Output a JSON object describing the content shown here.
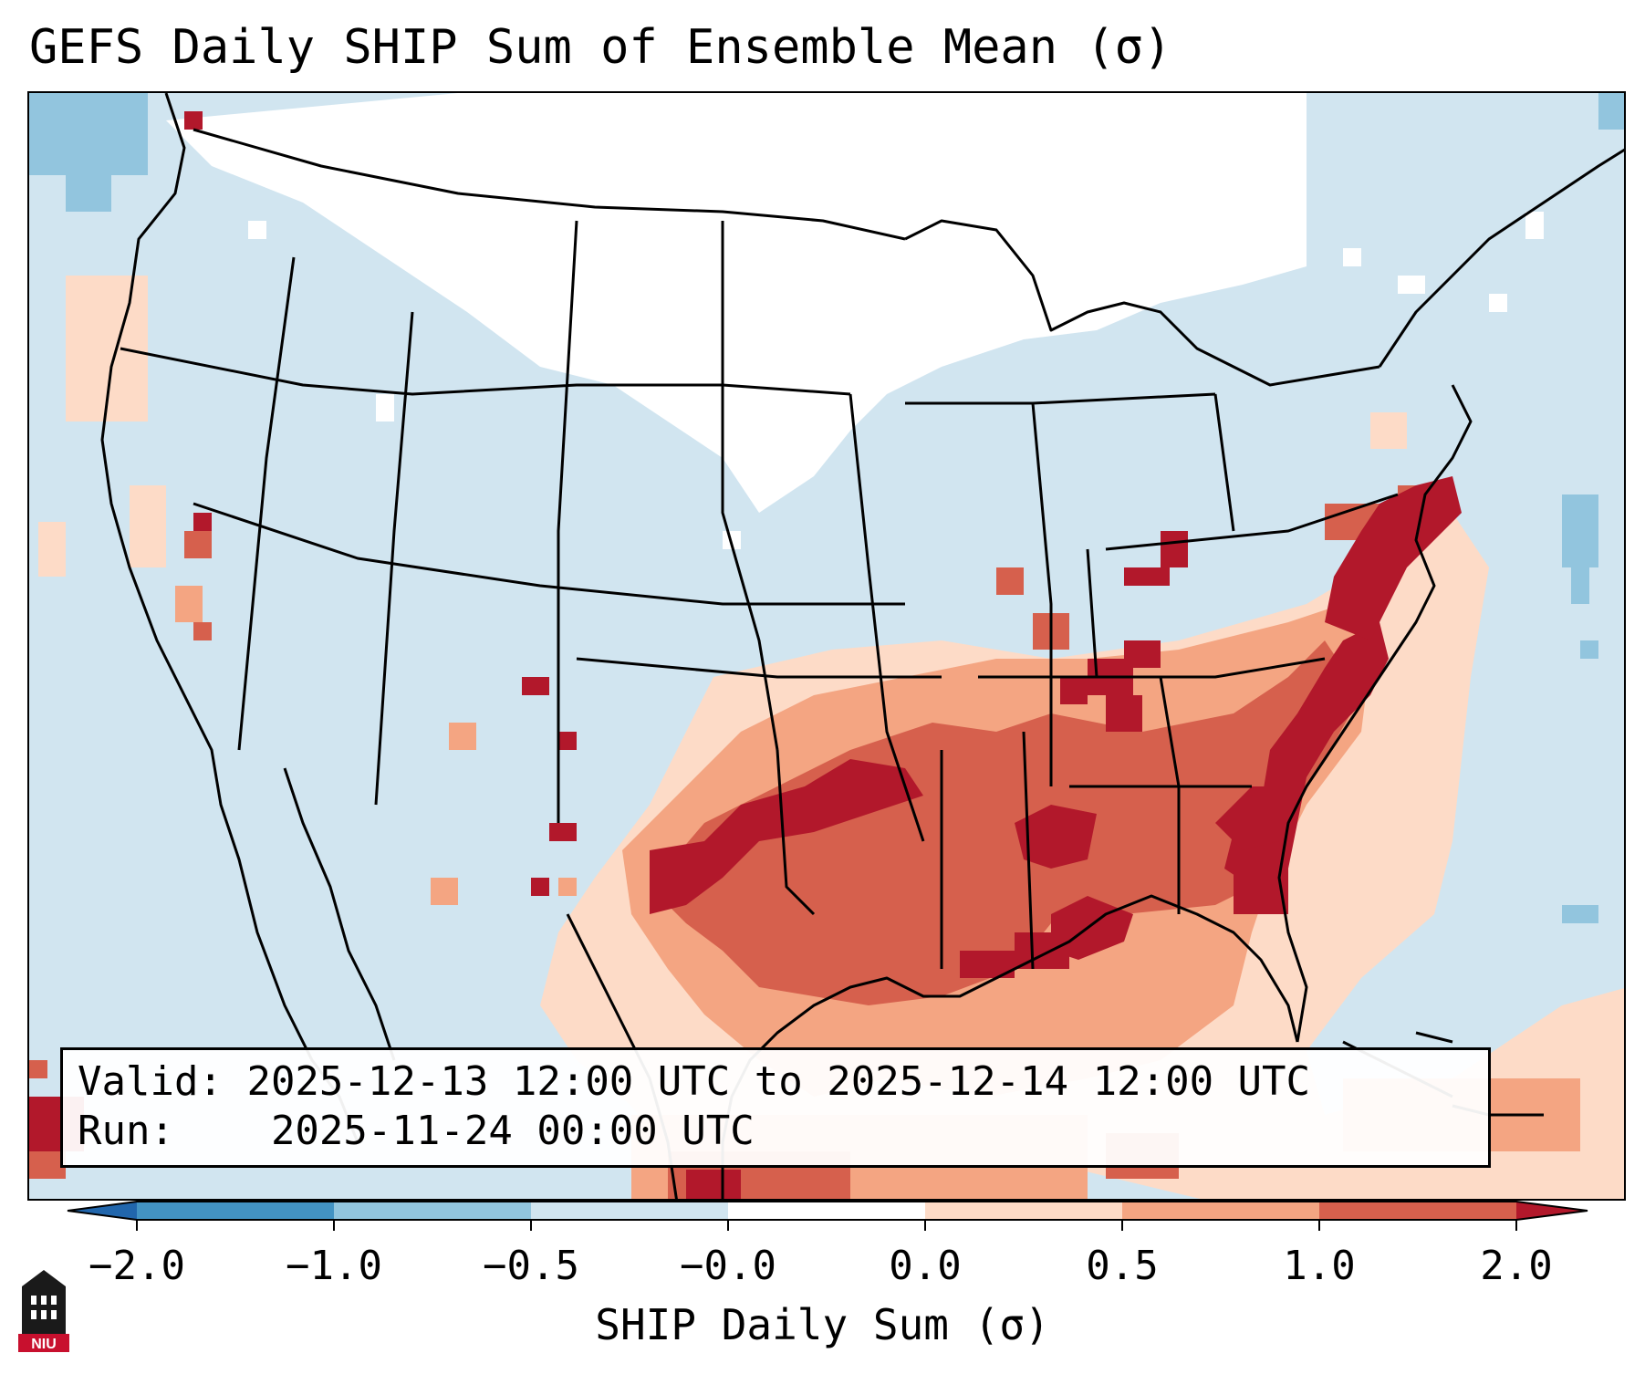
{
  "title": "GEFS Daily SHIP Sum of Ensemble Mean (σ)",
  "info": {
    "valid_label": "Valid:",
    "valid_text": "2025-12-13 12:00 UTC to 2025-12-14 12:00 UTC",
    "run_label": "Run:",
    "run_text": "2025-11-24 00:00 UTC"
  },
  "colorbar": {
    "label": "SHIP Daily Sum (σ)",
    "ticks": [
      "−2.0",
      "−1.0",
      "−0.5",
      "−0.0",
      "0.0",
      "0.5",
      "1.0",
      "2.0"
    ],
    "colors": {
      "below_min": "#2166ac",
      "bin_m2_m1": "#4393c3",
      "bin_m1_m05": "#92c5de",
      "bin_m05_0": "#d1e5f0",
      "bin_zero": "#ffffff",
      "bin_0_05": "#fddbc7",
      "bin_05_1": "#f4a582",
      "bin_1_2": "#d6604d",
      "above_max": "#b2182b"
    }
  },
  "regions": {
    "ocean_background": "#d1e5f0",
    "northern_plains_near_zero": "#ffffff",
    "southeast_us_high": "#b2182b",
    "gulf_of_mexico_moderate": "#f4a582"
  },
  "logo": {
    "text": "NIU"
  }
}
